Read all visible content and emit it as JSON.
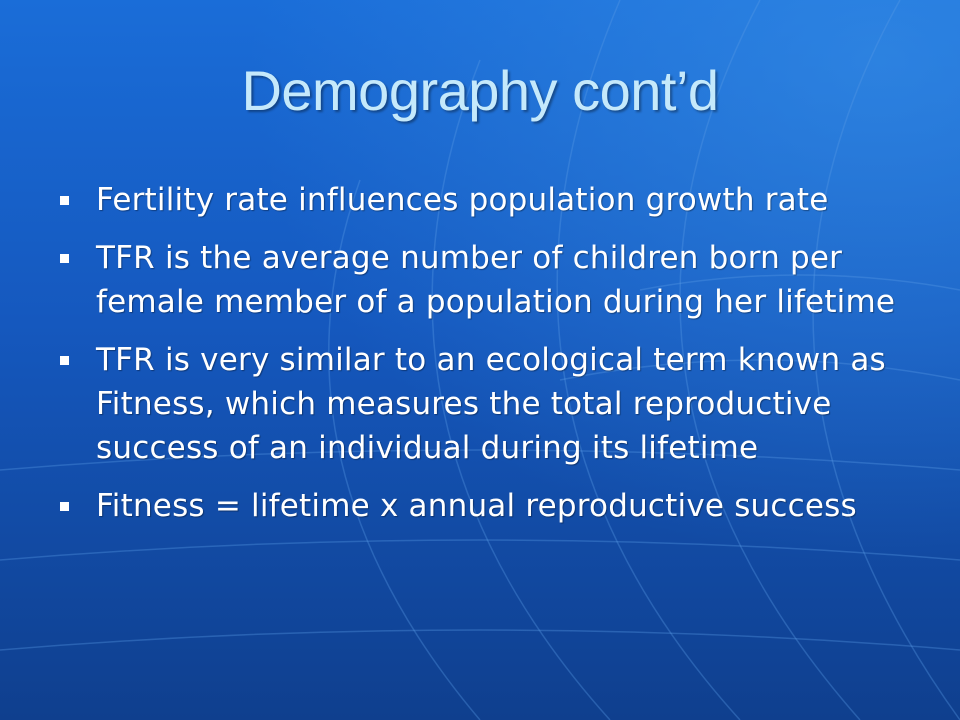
{
  "slide": {
    "title": "Demography cont’d",
    "bullets": [
      {
        "text": "Fertility rate influences population growth rate"
      },
      {
        "text": "TFR is the average number of children born per female member of a population during her lifetime"
      },
      {
        "text": "TFR is very similar to an ecological term known as Fitness, which measures the total reproductive success of an individual during its lifetime"
      },
      {
        "text": "Fitness = lifetime x annual reproductive success"
      }
    ]
  },
  "colors": {
    "background": "#1560c9",
    "title": "#c5e9fb",
    "body_text": "#ffffff",
    "grid_lines": "#4f8fe0"
  }
}
